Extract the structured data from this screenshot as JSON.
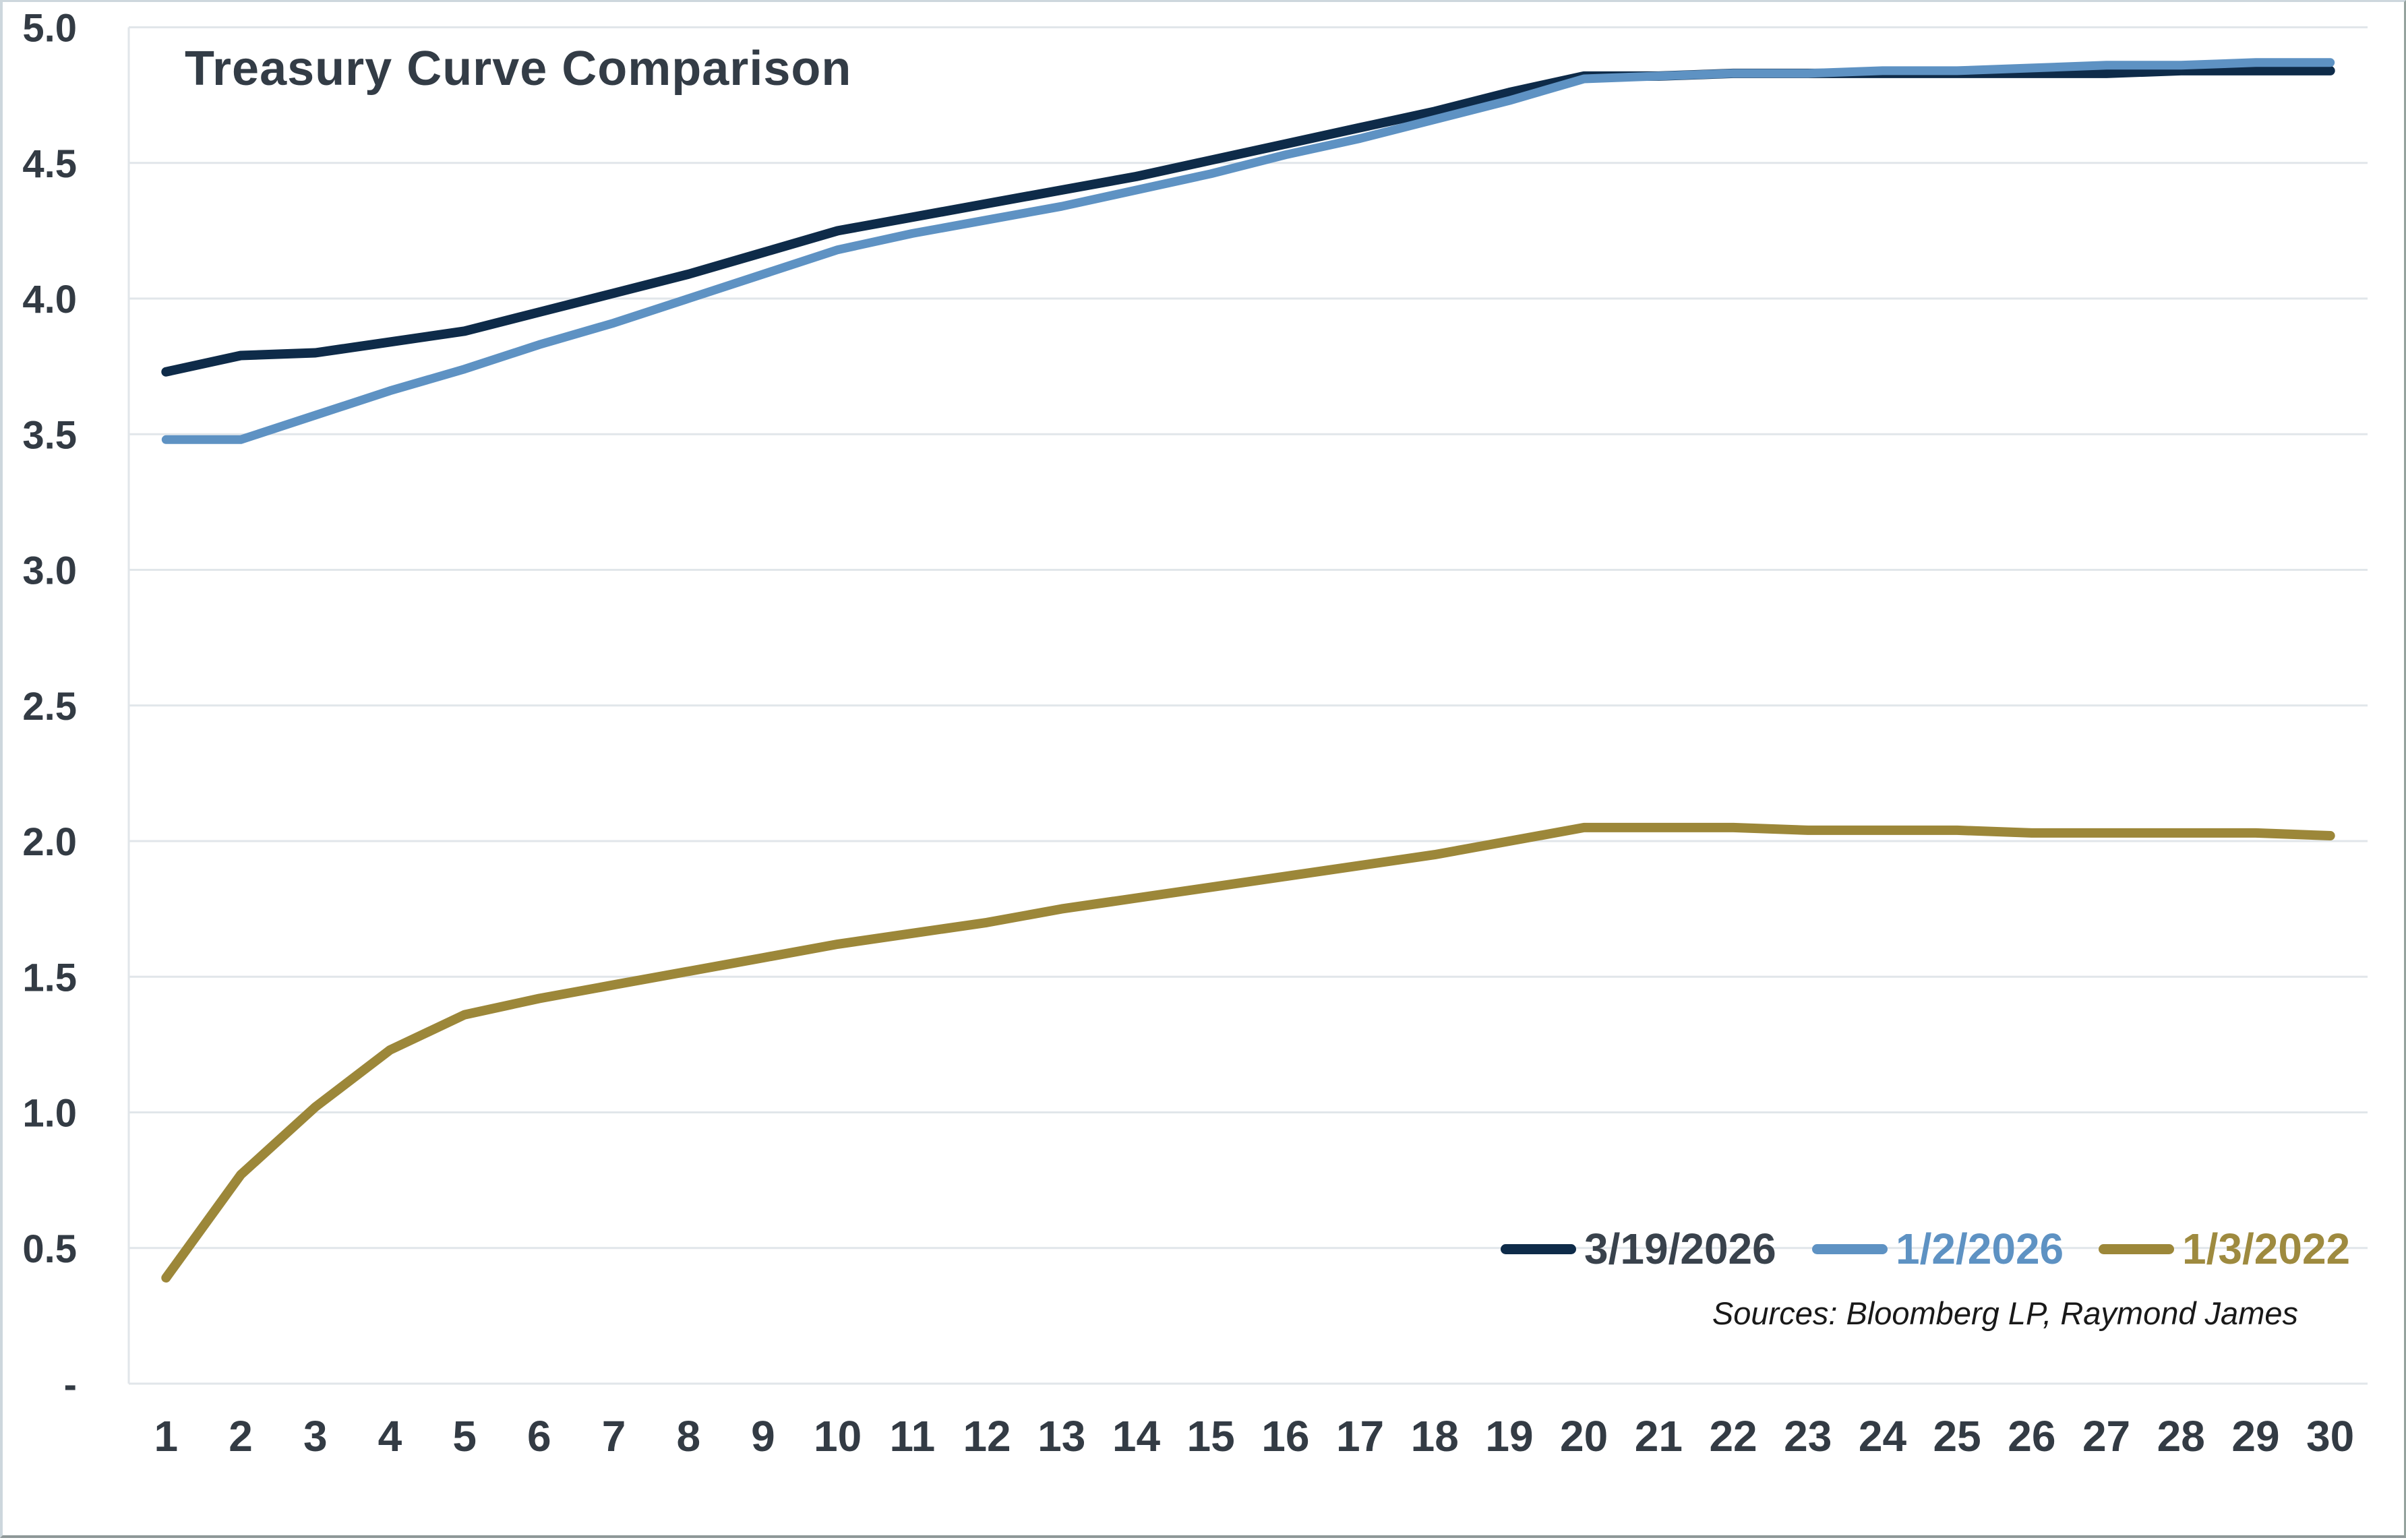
{
  "title": "Treasury Curve Comparison",
  "source_note": "Sources: Bloomberg LP, Raymond James",
  "colors": {
    "background": "#ffffff",
    "gridline": "#e1e6ea",
    "axis_text": "#333b44",
    "title_text": "#333c46",
    "series_navy": "#0e2b49",
    "series_blue": "#5e92c3",
    "series_gold": "#9c8739",
    "legend_label_navy": "#39424c",
    "legend_label_blue": "#5e92c3",
    "legend_label_gold": "#9e8a3f"
  },
  "legend": {
    "items": [
      {
        "label": "3/19/2026",
        "color": "#0e2b49",
        "text_color": "#39424c"
      },
      {
        "label": "1/2/2026",
        "color": "#5e92c3",
        "text_color": "#5e92c3"
      },
      {
        "label": "1/3/2022",
        "color": "#9c8739",
        "text_color": "#9e8a3f"
      }
    ]
  },
  "chart_data": {
    "type": "line",
    "title": "Treasury Curve Comparison",
    "xlabel": "",
    "ylabel": "",
    "x": [
      1,
      2,
      3,
      4,
      5,
      6,
      7,
      8,
      9,
      10,
      11,
      12,
      13,
      14,
      15,
      16,
      17,
      18,
      19,
      20,
      21,
      22,
      23,
      24,
      25,
      26,
      27,
      28,
      29,
      30
    ],
    "xtick_labels": [
      "1",
      "2",
      "3",
      "4",
      "5",
      "6",
      "7",
      "8",
      "9",
      "10",
      "11",
      "12",
      "13",
      "14",
      "15",
      "16",
      "17",
      "18",
      "19",
      "20",
      "21",
      "22",
      "23",
      "24",
      "25",
      "26",
      "27",
      "28",
      "29",
      "30"
    ],
    "ylim": [
      0,
      5.0
    ],
    "ytick_values": [
      5.0,
      4.5,
      4.0,
      3.5,
      3.0,
      2.5,
      2.0,
      1.5,
      1.0,
      0.5,
      0.0
    ],
    "ytick_labels": [
      "5.0",
      "4.5",
      "4.0",
      "3.5",
      "3.0",
      "2.5",
      "2.0",
      "1.5",
      "1.0",
      "0.5",
      "-"
    ],
    "grid": true,
    "legend_position": "inside-bottom-right",
    "series": [
      {
        "name": "3/19/2026",
        "color": "#0e2b49",
        "stroke_width": 14,
        "values": [
          3.73,
          3.79,
          3.8,
          3.84,
          3.88,
          3.95,
          4.02,
          4.09,
          4.17,
          4.25,
          4.3,
          4.35,
          4.4,
          4.45,
          4.51,
          4.57,
          4.63,
          4.69,
          4.76,
          4.82,
          4.82,
          4.83,
          4.83,
          4.83,
          4.83,
          4.83,
          4.83,
          4.84,
          4.84,
          4.84
        ]
      },
      {
        "name": "1/2/2026",
        "color": "#5e92c3",
        "stroke_width": 13,
        "values": [
          3.48,
          3.48,
          3.57,
          3.66,
          3.74,
          3.83,
          3.91,
          4.0,
          4.09,
          4.18,
          4.24,
          4.29,
          4.34,
          4.4,
          4.46,
          4.53,
          4.59,
          4.66,
          4.73,
          4.81,
          4.82,
          4.83,
          4.83,
          4.84,
          4.84,
          4.85,
          4.86,
          4.86,
          4.87,
          4.87
        ]
      },
      {
        "name": "1/3/2022",
        "color": "#9c8739",
        "stroke_width": 14,
        "values": [
          0.39,
          0.77,
          1.02,
          1.23,
          1.36,
          1.42,
          1.47,
          1.52,
          1.57,
          1.62,
          1.66,
          1.7,
          1.75,
          1.79,
          1.83,
          1.87,
          1.91,
          1.95,
          2.0,
          2.05,
          2.05,
          2.05,
          2.04,
          2.04,
          2.04,
          2.03,
          2.03,
          2.03,
          2.03,
          2.02
        ]
      }
    ]
  }
}
